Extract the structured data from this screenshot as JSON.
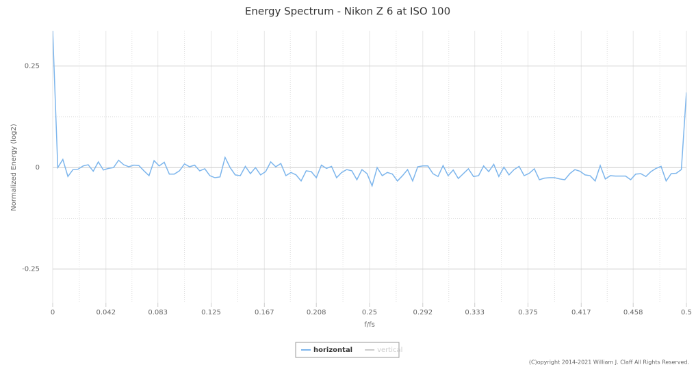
{
  "chart_data": {
    "type": "line",
    "title": "Energy Spectrum - Nikon Z 6 at ISO 100",
    "xlabel": "f/fs",
    "ylabel": "Normalized Energy (log2)",
    "copyright": "(C)opyright 2014-2021 William J. Claff All Rights Reserved.",
    "x": [
      0,
      0.004,
      0.008,
      0.012,
      0.016,
      0.02,
      0.024,
      0.028,
      0.032,
      0.036,
      0.04,
      0.044,
      0.048,
      0.052,
      0.056,
      0.06,
      0.064,
      0.068,
      0.072,
      0.076,
      0.08,
      0.084,
      0.088,
      0.092,
      0.096,
      0.1,
      0.104,
      0.108,
      0.112,
      0.116,
      0.12,
      0.124,
      0.128,
      0.132,
      0.136,
      0.14,
      0.144,
      0.148,
      0.152,
      0.156,
      0.16,
      0.164,
      0.168,
      0.172,
      0.176,
      0.18,
      0.184,
      0.188,
      0.192,
      0.196,
      0.2,
      0.204,
      0.208,
      0.212,
      0.216,
      0.22,
      0.224,
      0.228,
      0.232,
      0.236,
      0.24,
      0.244,
      0.248,
      0.252,
      0.256,
      0.26,
      0.264,
      0.268,
      0.272,
      0.276,
      0.28,
      0.284,
      0.288,
      0.292,
      0.296,
      0.3,
      0.304,
      0.308,
      0.312,
      0.316,
      0.32,
      0.324,
      0.328,
      0.332,
      0.336,
      0.34,
      0.344,
      0.348,
      0.352,
      0.356,
      0.36,
      0.364,
      0.368,
      0.372,
      0.376,
      0.38,
      0.384,
      0.388,
      0.392,
      0.396,
      0.4,
      0.404,
      0.408,
      0.412,
      0.416,
      0.42,
      0.424,
      0.428,
      0.432,
      0.436,
      0.44,
      0.444,
      0.448,
      0.452,
      0.456,
      0.46,
      0.464,
      0.468,
      0.472,
      0.476,
      0.48,
      0.484,
      0.488,
      0.492,
      0.496,
      0.5
    ],
    "series": [
      {
        "name": "horizontal",
        "color": "#7cb5ec",
        "visible": true,
        "values": [
          0.337,
          0.0,
          0.02,
          -0.022,
          -0.005,
          -0.004,
          0.004,
          0.007,
          -0.009,
          0.014,
          -0.006,
          -0.002,
          0.0,
          0.018,
          0.007,
          0.002,
          0.006,
          0.005,
          -0.008,
          -0.02,
          0.017,
          0.004,
          0.013,
          -0.016,
          -0.016,
          -0.008,
          0.009,
          0.002,
          0.006,
          -0.008,
          -0.003,
          -0.02,
          -0.025,
          -0.023,
          0.025,
          0.0,
          -0.018,
          -0.02,
          0.003,
          -0.015,
          0.0,
          -0.018,
          -0.01,
          0.014,
          0.002,
          0.01,
          -0.02,
          -0.012,
          -0.018,
          -0.033,
          -0.008,
          -0.01,
          -0.025,
          0.006,
          -0.002,
          0.003,
          -0.025,
          -0.012,
          -0.005,
          -0.008,
          -0.03,
          -0.005,
          -0.015,
          -0.045,
          0.0,
          -0.02,
          -0.012,
          -0.016,
          -0.033,
          -0.02,
          -0.005,
          -0.033,
          0.002,
          0.004,
          0.004,
          -0.015,
          -0.022,
          0.005,
          -0.02,
          -0.006,
          -0.027,
          -0.015,
          -0.003,
          -0.022,
          -0.02,
          0.004,
          -0.01,
          0.008,
          -0.022,
          0.001,
          -0.018,
          -0.005,
          0.003,
          -0.02,
          -0.014,
          -0.003,
          -0.03,
          -0.026,
          -0.025,
          -0.025,
          -0.028,
          -0.03,
          -0.015,
          -0.005,
          -0.009,
          -0.018,
          -0.02,
          -0.033,
          0.005,
          -0.028,
          -0.02,
          -0.021,
          -0.021,
          -0.021,
          -0.03,
          -0.016,
          -0.015,
          -0.022,
          -0.01,
          -0.002,
          0.003,
          -0.033,
          -0.015,
          -0.014,
          -0.005,
          0.185
        ]
      },
      {
        "name": "vertical",
        "color": "#cccccc",
        "visible": false
      }
    ],
    "xlim": [
      0,
      0.5
    ],
    "xticks": [
      0,
      0.042,
      0.083,
      0.125,
      0.167,
      0.208,
      0.25,
      0.292,
      0.333,
      0.375,
      0.417,
      0.458,
      0.5
    ],
    "ylim": [
      -0.333,
      0.337
    ],
    "yticks": [
      -0.25,
      0,
      0.25
    ],
    "grid": true,
    "minor_grid": true,
    "legend": "bottom"
  }
}
